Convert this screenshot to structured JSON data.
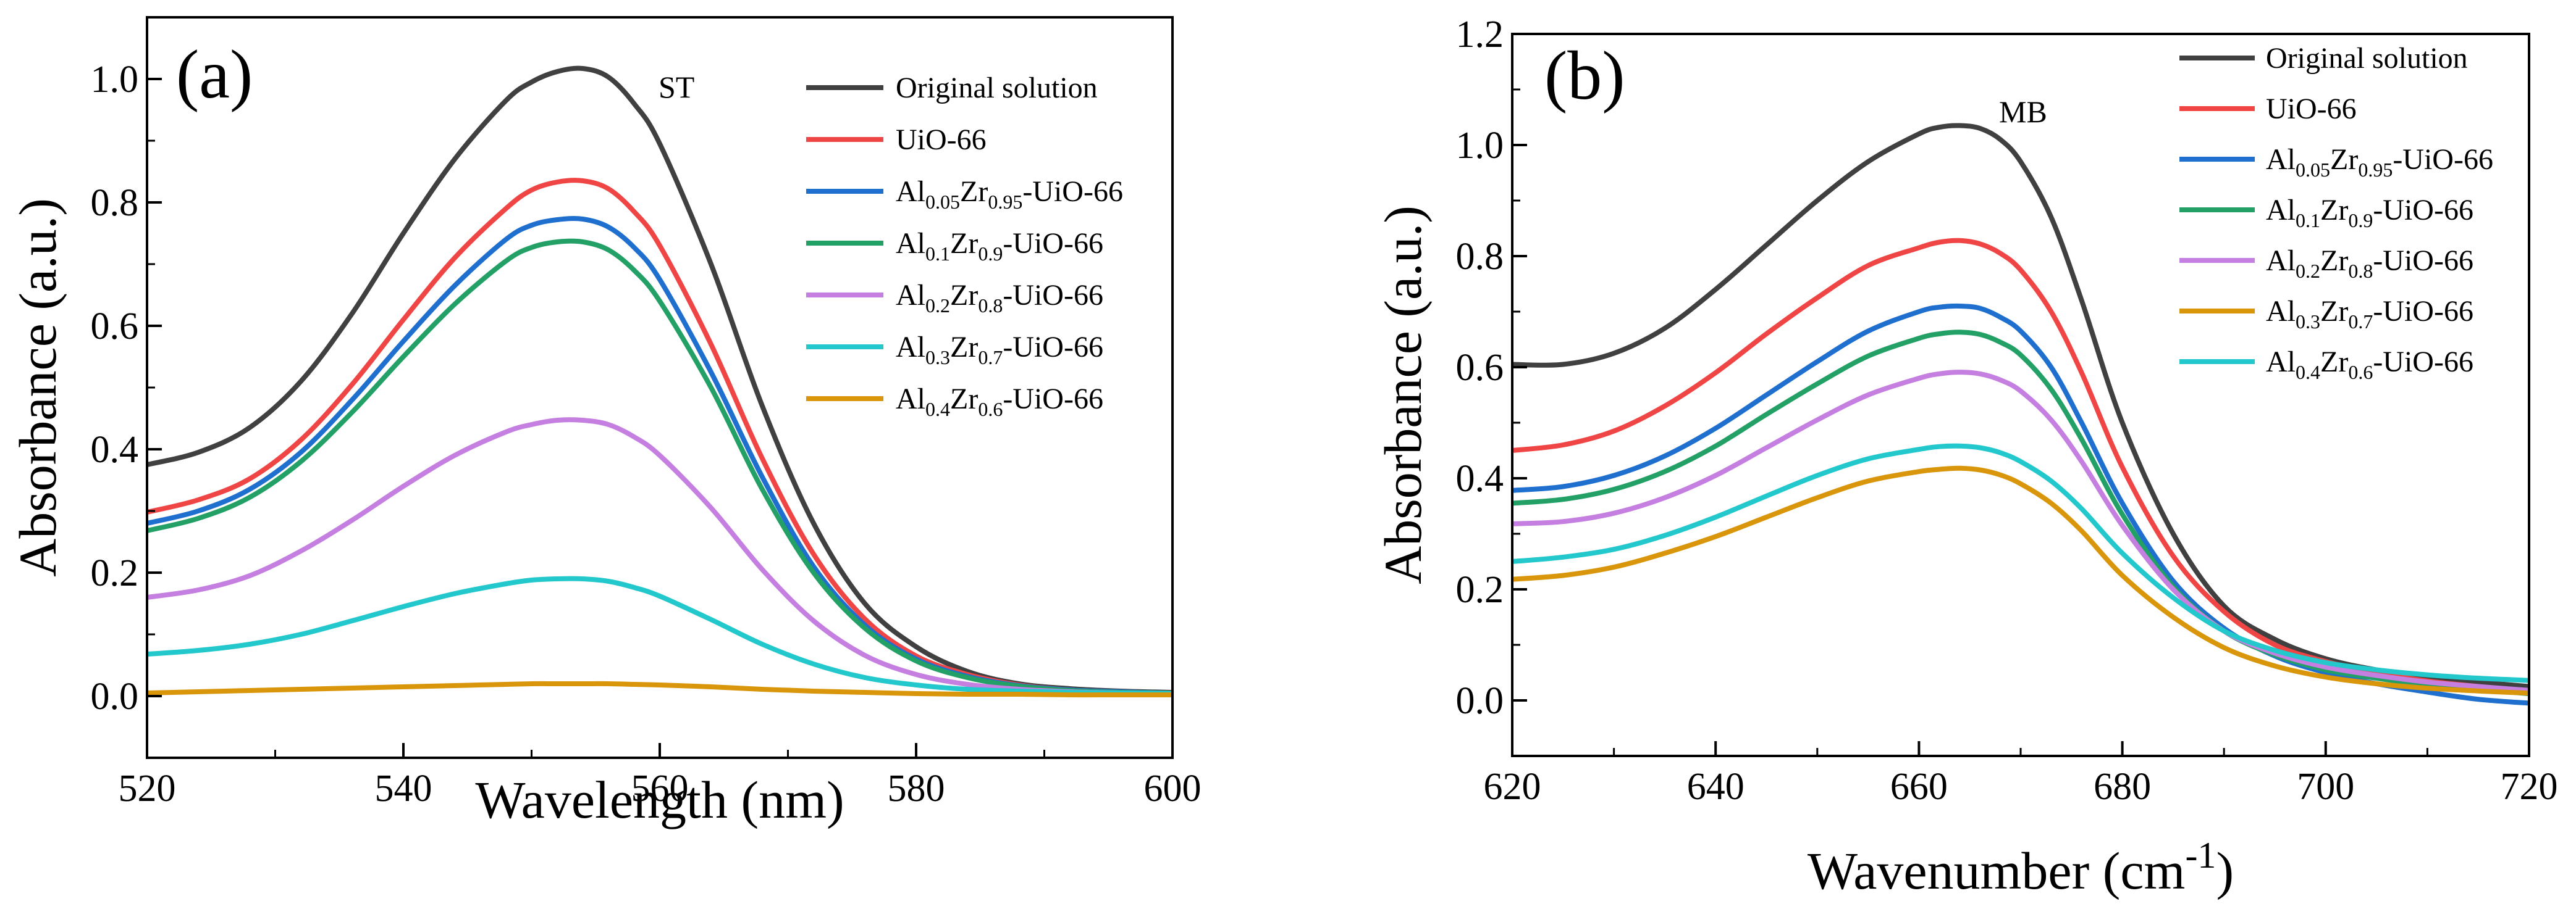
{
  "chart_data": [
    {
      "type": "line",
      "panel_label": "(a)",
      "annotation": "ST",
      "xlabel": "Wavelength (nm)",
      "ylabel": "Absorbance (a.u.)",
      "xlim": [
        520,
        600
      ],
      "ylim": [
        -0.1,
        1.1
      ],
      "xticks": [
        520,
        540,
        560,
        580,
        600
      ],
      "xtick_labels": [
        "520",
        "540",
        "560",
        "580",
        "600"
      ],
      "yticks": [
        0.0,
        0.2,
        0.4,
        0.6,
        0.8,
        1.0
      ],
      "ytick_labels": [
        "0.0",
        "0.2",
        "0.4",
        "0.6",
        "0.8",
        "1.0"
      ],
      "legend_position": "top-right",
      "x": [
        520,
        524,
        528,
        532,
        536,
        540,
        544,
        548,
        550,
        552,
        554,
        556,
        558,
        560,
        564,
        568,
        572,
        576,
        580,
        584,
        588,
        592,
        596,
        600
      ],
      "series": [
        {
          "name": "Original solution",
          "label": {
            "parts": [
              {
                "t": "Original solution"
              }
            ]
          },
          "color": "#404040",
          "values": [
            0.375,
            0.395,
            0.435,
            0.51,
            0.62,
            0.75,
            0.87,
            0.965,
            0.995,
            1.012,
            1.017,
            1.003,
            0.96,
            0.895,
            0.7,
            0.47,
            0.28,
            0.15,
            0.08,
            0.04,
            0.02,
            0.012,
            0.008,
            0.006
          ]
        },
        {
          "name": "UiO-66",
          "label": {
            "parts": [
              {
                "t": "UiO-66"
              }
            ]
          },
          "color": "#f04545",
          "values": [
            0.298,
            0.318,
            0.352,
            0.415,
            0.505,
            0.61,
            0.71,
            0.79,
            0.82,
            0.833,
            0.835,
            0.822,
            0.785,
            0.73,
            0.57,
            0.385,
            0.23,
            0.125,
            0.065,
            0.035,
            0.018,
            0.01,
            0.007,
            0.005
          ]
        },
        {
          "name": "Al0.05Zr0.95-UiO-66",
          "label": {
            "parts": [
              {
                "t": "Al"
              },
              {
                "t": "0.05",
                "sub": true
              },
              {
                "t": "Zr"
              },
              {
                "t": "0.95",
                "sub": true
              },
              {
                "t": "-UiO-66"
              }
            ]
          },
          "color": "#1f6fcf",
          "values": [
            0.28,
            0.3,
            0.335,
            0.395,
            0.48,
            0.575,
            0.665,
            0.74,
            0.763,
            0.772,
            0.773,
            0.76,
            0.727,
            0.675,
            0.525,
            0.355,
            0.21,
            0.115,
            0.06,
            0.032,
            0.017,
            0.01,
            0.007,
            0.005
          ]
        },
        {
          "name": "Al0.1Zr0.9-UiO-66",
          "label": {
            "parts": [
              {
                "t": "Al"
              },
              {
                "t": "0.1",
                "sub": true
              },
              {
                "t": "Zr"
              },
              {
                "t": "0.9",
                "sub": true
              },
              {
                "t": "-UiO-66"
              }
            ]
          },
          "color": "#22a066",
          "values": [
            0.268,
            0.288,
            0.322,
            0.38,
            0.46,
            0.55,
            0.635,
            0.705,
            0.727,
            0.736,
            0.736,
            0.723,
            0.69,
            0.64,
            0.5,
            0.335,
            0.2,
            0.11,
            0.057,
            0.03,
            0.016,
            0.009,
            0.006,
            0.005
          ]
        },
        {
          "name": "Al0.2Zr0.8-UiO-66",
          "label": {
            "parts": [
              {
                "t": "Al"
              },
              {
                "t": "0.2",
                "sub": true
              },
              {
                "t": "Zr"
              },
              {
                "t": "0.8",
                "sub": true
              },
              {
                "t": "-UiO-66"
              }
            ]
          },
          "color": "#c47fe0",
          "values": [
            0.16,
            0.172,
            0.195,
            0.235,
            0.285,
            0.34,
            0.39,
            0.428,
            0.44,
            0.447,
            0.447,
            0.44,
            0.42,
            0.39,
            0.305,
            0.205,
            0.122,
            0.066,
            0.035,
            0.019,
            0.011,
            0.007,
            0.005,
            0.004
          ]
        },
        {
          "name": "Al0.3Zr0.7-UiO-66",
          "label": {
            "parts": [
              {
                "t": "Al"
              },
              {
                "t": "0.3",
                "sub": true
              },
              {
                "t": "Zr"
              },
              {
                "t": "0.7",
                "sub": true
              },
              {
                "t": "-UiO-66"
              }
            ]
          },
          "color": "#22c8cc",
          "values": [
            0.068,
            0.074,
            0.084,
            0.1,
            0.122,
            0.145,
            0.166,
            0.182,
            0.188,
            0.19,
            0.19,
            0.186,
            0.176,
            0.162,
            0.124,
            0.084,
            0.052,
            0.03,
            0.018,
            0.011,
            0.008,
            0.006,
            0.005,
            0.004
          ]
        },
        {
          "name": "Al0.4Zr0.6-UiO-66",
          "label": {
            "parts": [
              {
                "t": "Al"
              },
              {
                "t": "0.4",
                "sub": true
              },
              {
                "t": "Zr"
              },
              {
                "t": "0.6",
                "sub": true
              },
              {
                "t": "-UiO-66"
              }
            ]
          },
          "color": "#d9960b",
          "values": [
            0.005,
            0.007,
            0.009,
            0.011,
            0.013,
            0.015,
            0.017,
            0.019,
            0.02,
            0.02,
            0.02,
            0.02,
            0.019,
            0.018,
            0.015,
            0.011,
            0.008,
            0.006,
            0.004,
            0.003,
            0.003,
            0.002,
            0.002,
            0.002
          ]
        }
      ]
    },
    {
      "type": "line",
      "panel_label": "(b)",
      "annotation": "MB",
      "xlabel": "Wavenumber (cm",
      "xlabel_sup": "-1",
      "xlabel_end": ")",
      "ylabel": "Absorbance (a.u.)",
      "xlim": [
        620,
        720
      ],
      "ylim": [
        -0.1,
        1.2
      ],
      "xticks": [
        620,
        640,
        660,
        680,
        700,
        720
      ],
      "xtick_labels": [
        "620",
        "640",
        "660",
        "680",
        "700",
        "720"
      ],
      "yticks": [
        0.0,
        0.2,
        0.4,
        0.6,
        0.8,
        1.0,
        1.2
      ],
      "ytick_labels": [
        "0.0",
        "0.2",
        "0.4",
        "0.6",
        "0.8",
        "1.0",
        "1.2"
      ],
      "legend_position": "top-right",
      "x": [
        620,
        625,
        630,
        635,
        640,
        645,
        650,
        655,
        660,
        662,
        664,
        666,
        668,
        670,
        673,
        676,
        680,
        685,
        690,
        695,
        700,
        705,
        710,
        715,
        720
      ],
      "series": [
        {
          "name": "Original solution",
          "label": {
            "parts": [
              {
                "t": "Original solution"
              }
            ]
          },
          "color": "#404040",
          "values": [
            0.605,
            0.605,
            0.625,
            0.67,
            0.74,
            0.82,
            0.9,
            0.97,
            1.02,
            1.032,
            1.035,
            1.03,
            1.01,
            0.97,
            0.87,
            0.72,
            0.5,
            0.3,
            0.17,
            0.11,
            0.075,
            0.055,
            0.042,
            0.033,
            0.025
          ]
        },
        {
          "name": "UiO-66",
          "label": {
            "parts": [
              {
                "t": "UiO-66"
              }
            ]
          },
          "color": "#f04545",
          "values": [
            0.45,
            0.46,
            0.485,
            0.53,
            0.59,
            0.66,
            0.725,
            0.783,
            0.815,
            0.825,
            0.828,
            0.822,
            0.805,
            0.775,
            0.7,
            0.59,
            0.42,
            0.26,
            0.16,
            0.1,
            0.07,
            0.05,
            0.035,
            0.025,
            0.015
          ]
        },
        {
          "name": "Al0.05Zr0.95-UiO-66",
          "label": {
            "parts": [
              {
                "t": "Al"
              },
              {
                "t": "0.05",
                "sub": true
              },
              {
                "t": "Zr"
              },
              {
                "t": "0.95",
                "sub": true
              },
              {
                "t": "-UiO-66"
              }
            ]
          },
          "color": "#1f6fcf",
          "values": [
            0.378,
            0.385,
            0.405,
            0.44,
            0.49,
            0.55,
            0.61,
            0.665,
            0.7,
            0.708,
            0.71,
            0.706,
            0.69,
            0.665,
            0.6,
            0.5,
            0.355,
            0.215,
            0.13,
            0.08,
            0.05,
            0.03,
            0.015,
            0.002,
            -0.005
          ]
        },
        {
          "name": "Al0.1Zr0.9-UiO-66",
          "label": {
            "parts": [
              {
                "t": "Al"
              },
              {
                "t": "0.1",
                "sub": true
              },
              {
                "t": "Zr"
              },
              {
                "t": "0.9",
                "sub": true
              },
              {
                "t": "-UiO-66"
              }
            ]
          },
          "color": "#22a066",
          "values": [
            0.355,
            0.362,
            0.38,
            0.412,
            0.458,
            0.515,
            0.57,
            0.62,
            0.652,
            0.66,
            0.663,
            0.659,
            0.645,
            0.622,
            0.56,
            0.47,
            0.335,
            0.205,
            0.125,
            0.082,
            0.055,
            0.04,
            0.028,
            0.02,
            0.012
          ]
        },
        {
          "name": "Al0.2Zr0.8-UiO-66",
          "label": {
            "parts": [
              {
                "t": "Al"
              },
              {
                "t": "0.2",
                "sub": true
              },
              {
                "t": "Zr"
              },
              {
                "t": "0.8",
                "sub": true
              },
              {
                "t": "-UiO-66"
              }
            ]
          },
          "color": "#c47fe0",
          "values": [
            0.318,
            0.322,
            0.337,
            0.365,
            0.405,
            0.455,
            0.505,
            0.55,
            0.58,
            0.588,
            0.591,
            0.588,
            0.577,
            0.557,
            0.505,
            0.43,
            0.315,
            0.2,
            0.125,
            0.085,
            0.06,
            0.045,
            0.033,
            0.025,
            0.018
          ]
        },
        {
          "name": "Al0.3Zr0.7-UiO-66",
          "label": {
            "parts": [
              {
                "t": "Al"
              },
              {
                "t": "0.3",
                "sub": true
              },
              {
                "t": "Zr"
              },
              {
                "t": "0.7",
                "sub": true
              },
              {
                "t": "-UiO-66"
              }
            ]
          },
          "color": "#d9960b",
          "values": [
            0.218,
            0.225,
            0.24,
            0.265,
            0.295,
            0.33,
            0.365,
            0.395,
            0.412,
            0.416,
            0.418,
            0.415,
            0.406,
            0.39,
            0.355,
            0.305,
            0.225,
            0.15,
            0.095,
            0.062,
            0.042,
            0.03,
            0.022,
            0.017,
            0.013
          ]
        },
        {
          "name": "Al0.4Zr0.6-UiO-66",
          "label": {
            "parts": [
              {
                "t": "Al"
              },
              {
                "t": "0.4",
                "sub": true
              },
              {
                "t": "Zr"
              },
              {
                "t": "0.6",
                "sub": true
              },
              {
                "t": "-UiO-66"
              }
            ]
          },
          "color": "#22c8cc",
          "values": [
            0.25,
            0.258,
            0.272,
            0.297,
            0.33,
            0.368,
            0.405,
            0.435,
            0.452,
            0.457,
            0.458,
            0.455,
            0.446,
            0.43,
            0.395,
            0.345,
            0.265,
            0.185,
            0.125,
            0.09,
            0.068,
            0.055,
            0.046,
            0.04,
            0.036
          ]
        }
      ]
    }
  ]
}
